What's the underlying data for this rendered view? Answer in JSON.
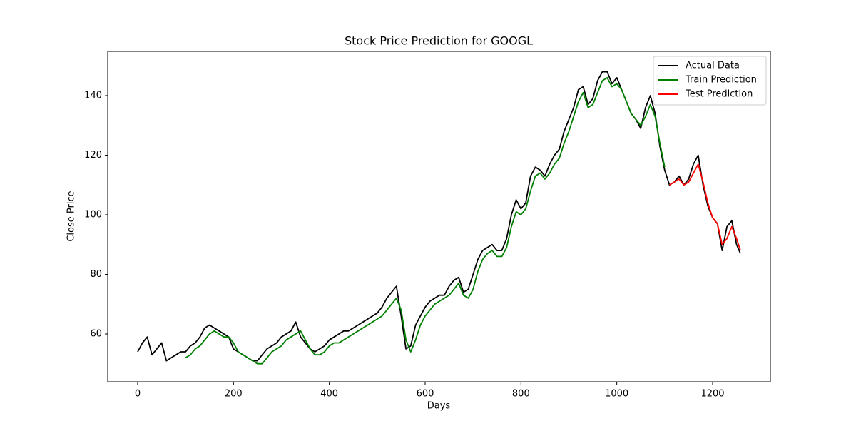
{
  "chart_data": {
    "type": "line",
    "title": "Stock Price Prediction for GOOGL",
    "x_label": "Days",
    "y_label": "Close Price",
    "x": [
      0,
      10,
      20,
      30,
      40,
      50,
      60,
      70,
      80,
      90,
      100,
      110,
      120,
      130,
      140,
      150,
      160,
      170,
      180,
      190,
      200,
      210,
      220,
      230,
      240,
      250,
      260,
      270,
      280,
      290,
      300,
      310,
      320,
      330,
      340,
      350,
      360,
      370,
      380,
      390,
      400,
      410,
      420,
      430,
      440,
      450,
      460,
      470,
      480,
      490,
      500,
      510,
      520,
      530,
      540,
      550,
      560,
      570,
      580,
      590,
      600,
      610,
      620,
      630,
      640,
      650,
      660,
      670,
      680,
      690,
      700,
      710,
      720,
      730,
      740,
      750,
      760,
      770,
      780,
      790,
      800,
      810,
      820,
      830,
      840,
      850,
      860,
      870,
      880,
      890,
      900,
      910,
      920,
      930,
      940,
      950,
      960,
      970,
      980,
      990,
      1000,
      1010,
      1020,
      1030,
      1040,
      1050,
      1060,
      1070,
      1080,
      1090,
      1100,
      1110,
      1120,
      1130,
      1140,
      1150,
      1160,
      1170,
      1180,
      1190,
      1200,
      1210,
      1220,
      1230,
      1240,
      1250,
      1258
    ],
    "series": [
      {
        "name": "Actual Data",
        "color": "#000000",
        "values": [
          54,
          57,
          59,
          53,
          55,
          57,
          51,
          52,
          53,
          54,
          54,
          56,
          57,
          59,
          62,
          63,
          62,
          61,
          60,
          59,
          55,
          54,
          53,
          52,
          51,
          51,
          53,
          55,
          56,
          57,
          59,
          60,
          61,
          64,
          59,
          57,
          55,
          54,
          55,
          56,
          58,
          59,
          60,
          61,
          61,
          62,
          63,
          64,
          65,
          66,
          67,
          69,
          72,
          74,
          76,
          66,
          55,
          56,
          63,
          66,
          69,
          71,
          72,
          73,
          73,
          76,
          78,
          79,
          74,
          75,
          80,
          85,
          88,
          89,
          90,
          88,
          88,
          92,
          100,
          105,
          102,
          104,
          113,
          116,
          115,
          113,
          117,
          120,
          122,
          128,
          132,
          136,
          142,
          143,
          137,
          139,
          145,
          148,
          148,
          144,
          146,
          142,
          138,
          134,
          132,
          129,
          136,
          140,
          134,
          123,
          115,
          110,
          111,
          113,
          110,
          112,
          117,
          120,
          110,
          103,
          99,
          97,
          88,
          96,
          98,
          90,
          87
        ]
      },
      {
        "name": "Train Prediction",
        "color": "#008000",
        "values": [
          null,
          null,
          null,
          null,
          null,
          null,
          null,
          null,
          null,
          null,
          52,
          53,
          55,
          56,
          58,
          60,
          61,
          60,
          59,
          59,
          57,
          54,
          53,
          52,
          51,
          50,
          50,
          52,
          54,
          55,
          56,
          58,
          59,
          60,
          61,
          58,
          55,
          53,
          53,
          54,
          56,
          57,
          57,
          58,
          59,
          60,
          61,
          62,
          63,
          64,
          65,
          66,
          68,
          70,
          72,
          68,
          58,
          54,
          58,
          63,
          66,
          68,
          70,
          71,
          72,
          73,
          75,
          77,
          73,
          72,
          75,
          81,
          85,
          87,
          88,
          86,
          86,
          89,
          96,
          101,
          100,
          102,
          108,
          113,
          114,
          112,
          114,
          117,
          119,
          124,
          128,
          133,
          138,
          141,
          136,
          137,
          141,
          145,
          146,
          143,
          144,
          142,
          138,
          134,
          132,
          130,
          133,
          137,
          133,
          124,
          116,
          null,
          null,
          null,
          null,
          null,
          null,
          null,
          null,
          null,
          null,
          null,
          null,
          null,
          null,
          null,
          null
        ]
      },
      {
        "name": "Test Prediction",
        "color": "#ff0000",
        "values": [
          null,
          null,
          null,
          null,
          null,
          null,
          null,
          null,
          null,
          null,
          null,
          null,
          null,
          null,
          null,
          null,
          null,
          null,
          null,
          null,
          null,
          null,
          null,
          null,
          null,
          null,
          null,
          null,
          null,
          null,
          null,
          null,
          null,
          null,
          null,
          null,
          null,
          null,
          null,
          null,
          null,
          null,
          null,
          null,
          null,
          null,
          null,
          null,
          null,
          null,
          null,
          null,
          null,
          null,
          null,
          null,
          null,
          null,
          null,
          null,
          null,
          null,
          null,
          null,
          null,
          null,
          null,
          null,
          null,
          null,
          null,
          null,
          null,
          null,
          null,
          null,
          null,
          null,
          null,
          null,
          null,
          null,
          null,
          null,
          null,
          null,
          null,
          null,
          null,
          null,
          null,
          null,
          null,
          null,
          null,
          null,
          null,
          null,
          null,
          null,
          null,
          null,
          null,
          null,
          null,
          null,
          null,
          null,
          null,
          null,
          null,
          110,
          111,
          112,
          110,
          111,
          114,
          117,
          111,
          104,
          99,
          97,
          90,
          92,
          96,
          92,
          88
        ]
      }
    ],
    "xlim": [
      -62.5,
      1320.6
    ],
    "ylim": [
      43.95,
      154.85
    ],
    "xticks": [
      0,
      200,
      400,
      600,
      800,
      1000,
      1200
    ],
    "yticks": [
      60,
      80,
      100,
      120,
      140
    ],
    "legend": "upper right"
  }
}
